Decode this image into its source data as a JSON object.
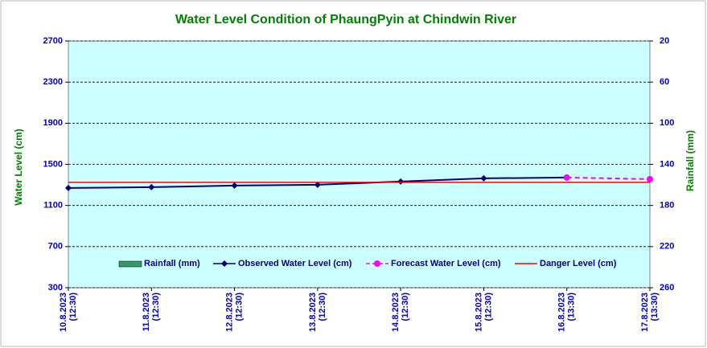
{
  "chart_data": {
    "type": "line",
    "title": "Water Level Condition of PhaungPyin at Chindwin River",
    "y_label": "Water Level (cm)",
    "y2_label": "Rainfall (mm)",
    "categories": [
      [
        "10.8.2023",
        "(12:30)"
      ],
      [
        "11.8.2023",
        "(12:30)"
      ],
      [
        "12.8.2023",
        "(12:30)"
      ],
      [
        "13.8.2023",
        "(12:30)"
      ],
      [
        "14.8.2023",
        "(12:30)"
      ],
      [
        "15.8.2023",
        "(12:30)"
      ],
      [
        "16.8.2023",
        "(13:30)"
      ],
      [
        "17.8.2023",
        "(13:30)"
      ]
    ],
    "series": [
      {
        "name": "Rainfall (mm)",
        "color": "#339966",
        "axis": "y2",
        "kind": "bar",
        "values": [
          null,
          null,
          null,
          null,
          null,
          null,
          null,
          null
        ]
      },
      {
        "name": "Observed Water Level (cm)",
        "color": "#000080",
        "kind": "line",
        "marker": "diamond",
        "values": [
          1270,
          1278,
          1294,
          1302,
          1333,
          1364,
          1372,
          null
        ]
      },
      {
        "name": "Forecast Water Level (cm)",
        "color": "#ff00ff",
        "kind": "line",
        "marker": "circle",
        "dashed": true,
        "values": [
          null,
          null,
          null,
          null,
          null,
          null,
          1372,
          1356
        ]
      },
      {
        "name": "Danger Level (cm)",
        "color": "#ff0000",
        "kind": "line",
        "values": [
          1325,
          1325,
          1325,
          1325,
          1325,
          1325,
          1325,
          1325
        ]
      }
    ],
    "ylim": [
      300,
      2700
    ],
    "yticks": [
      300,
      700,
      1100,
      1500,
      1900,
      2300,
      2700
    ],
    "y2lim": [
      260,
      20
    ],
    "y2ticks": [
      260,
      220,
      180,
      140,
      100,
      60,
      20
    ],
    "grid": true,
    "background": "#ccffff"
  }
}
